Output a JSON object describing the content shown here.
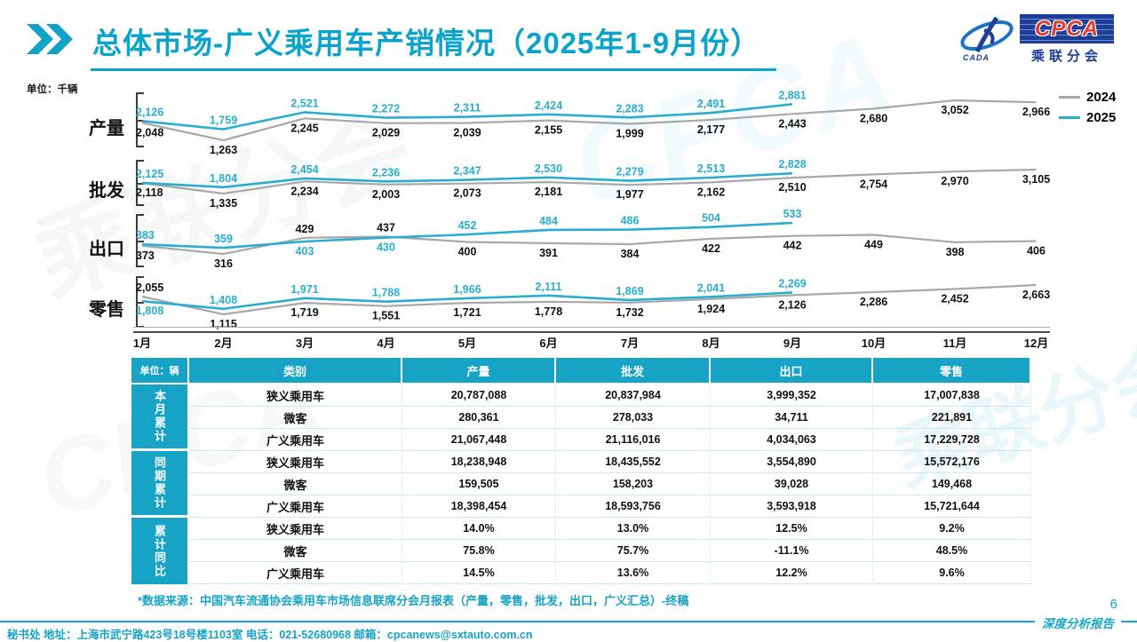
{
  "header": {
    "title": "总体市场-广义乘用车产销情况（2025年1-9月份）",
    "logo": {
      "name": "CPCA",
      "subtitle": "乘联分会",
      "swoosh_text": "CADA"
    }
  },
  "chart_data": {
    "type": "line",
    "unit_label": "单位：千辆",
    "x_categories": [
      "1月",
      "2月",
      "3月",
      "4月",
      "5月",
      "6月",
      "7月",
      "8月",
      "9月",
      "10月",
      "11月",
      "12月"
    ],
    "legend": [
      {
        "name": "2024",
        "color": "#a8a8a8"
      },
      {
        "name": "2025",
        "color": "#29aecf"
      }
    ],
    "panels": [
      {
        "label": "产量",
        "series": [
          {
            "name": "2024",
            "values": [
              2048,
              1263,
              2245,
              2029,
              2039,
              2155,
              1999,
              2177,
              2443,
              2680,
              3052,
              2966
            ]
          },
          {
            "name": "2025",
            "values": [
              2126,
              1759,
              2521,
              2272,
              2311,
              2424,
              2283,
              2491,
              2881
            ]
          }
        ]
      },
      {
        "label": "批发",
        "series": [
          {
            "name": "2024",
            "values": [
              2118,
              1335,
              2234,
              2003,
              2073,
              2181,
              1977,
              2162,
              2510,
              2754,
              2970,
              3105
            ]
          },
          {
            "name": "2025",
            "values": [
              2125,
              1804,
              2454,
              2236,
              2347,
              2530,
              2279,
              2513,
              2828
            ]
          }
        ]
      },
      {
        "label": "出口",
        "series": [
          {
            "name": "2024",
            "values": [
              373,
              316,
              429,
              437,
              400,
              391,
              384,
              422,
              442,
              449,
              398,
              406
            ]
          },
          {
            "name": "2025",
            "values": [
              383,
              359,
              403,
              430,
              452,
              484,
              486,
              504,
              533
            ]
          }
        ]
      },
      {
        "label": "零售",
        "series": [
          {
            "name": "2024",
            "values": [
              2055,
              1115,
              1719,
              1551,
              1721,
              1778,
              1732,
              1924,
              2126,
              2286,
              2452,
              2663
            ]
          },
          {
            "name": "2025",
            "values": [
              1808,
              1408,
              1971,
              1788,
              1966,
              2111,
              1869,
              2041,
              2269
            ]
          }
        ]
      }
    ]
  },
  "table": {
    "unit_header": "单位：辆",
    "columns": [
      "类别",
      "产量",
      "批发",
      "出口",
      "零售"
    ],
    "groups": [
      {
        "label": "本月累计",
        "rows": [
          {
            "category": "狭义乘用车",
            "values": [
              "20,787,088",
              "20,837,984",
              "3,999,352",
              "17,007,838"
            ]
          },
          {
            "category": "微客",
            "values": [
              "280,361",
              "278,033",
              "34,711",
              "221,891"
            ]
          },
          {
            "category": "广义乘用车",
            "values": [
              "21,067,448",
              "21,116,016",
              "4,034,063",
              "17,229,728"
            ]
          }
        ]
      },
      {
        "label": "同期累计",
        "rows": [
          {
            "category": "狭义乘用车",
            "values": [
              "18,238,948",
              "18,435,552",
              "3,554,890",
              "15,572,176"
            ]
          },
          {
            "category": "微客",
            "values": [
              "159,505",
              "158,203",
              "39,028",
              "149,468"
            ]
          },
          {
            "category": "广义乘用车",
            "values": [
              "18,398,454",
              "18,593,756",
              "3,593,918",
              "15,721,644"
            ]
          }
        ]
      },
      {
        "label": "累计同比",
        "rows": [
          {
            "category": "狭义乘用车",
            "values": [
              "14.0%",
              "13.0%",
              "12.5%",
              "9.2%"
            ]
          },
          {
            "category": "微客",
            "values": [
              "75.8%",
              "75.7%",
              "-11.1%",
              "48.5%"
            ]
          },
          {
            "category": "广义乘用车",
            "values": [
              "14.5%",
              "13.6%",
              "12.2%",
              "9.6%"
            ]
          }
        ]
      }
    ]
  },
  "footer": {
    "source_note": "*数据来源：中国汽车流通协会乘用车市场信息联席分会月报表（产量，零售，批发，出口，广义汇总）-终稿",
    "page_number": "6",
    "contact": "秘书处  地址：上海市武宁路423号18号楼1103室  电话：021-52680968  邮箱：cpcanews@sxtauto.com.cn",
    "report_label": "深度分析报告"
  }
}
